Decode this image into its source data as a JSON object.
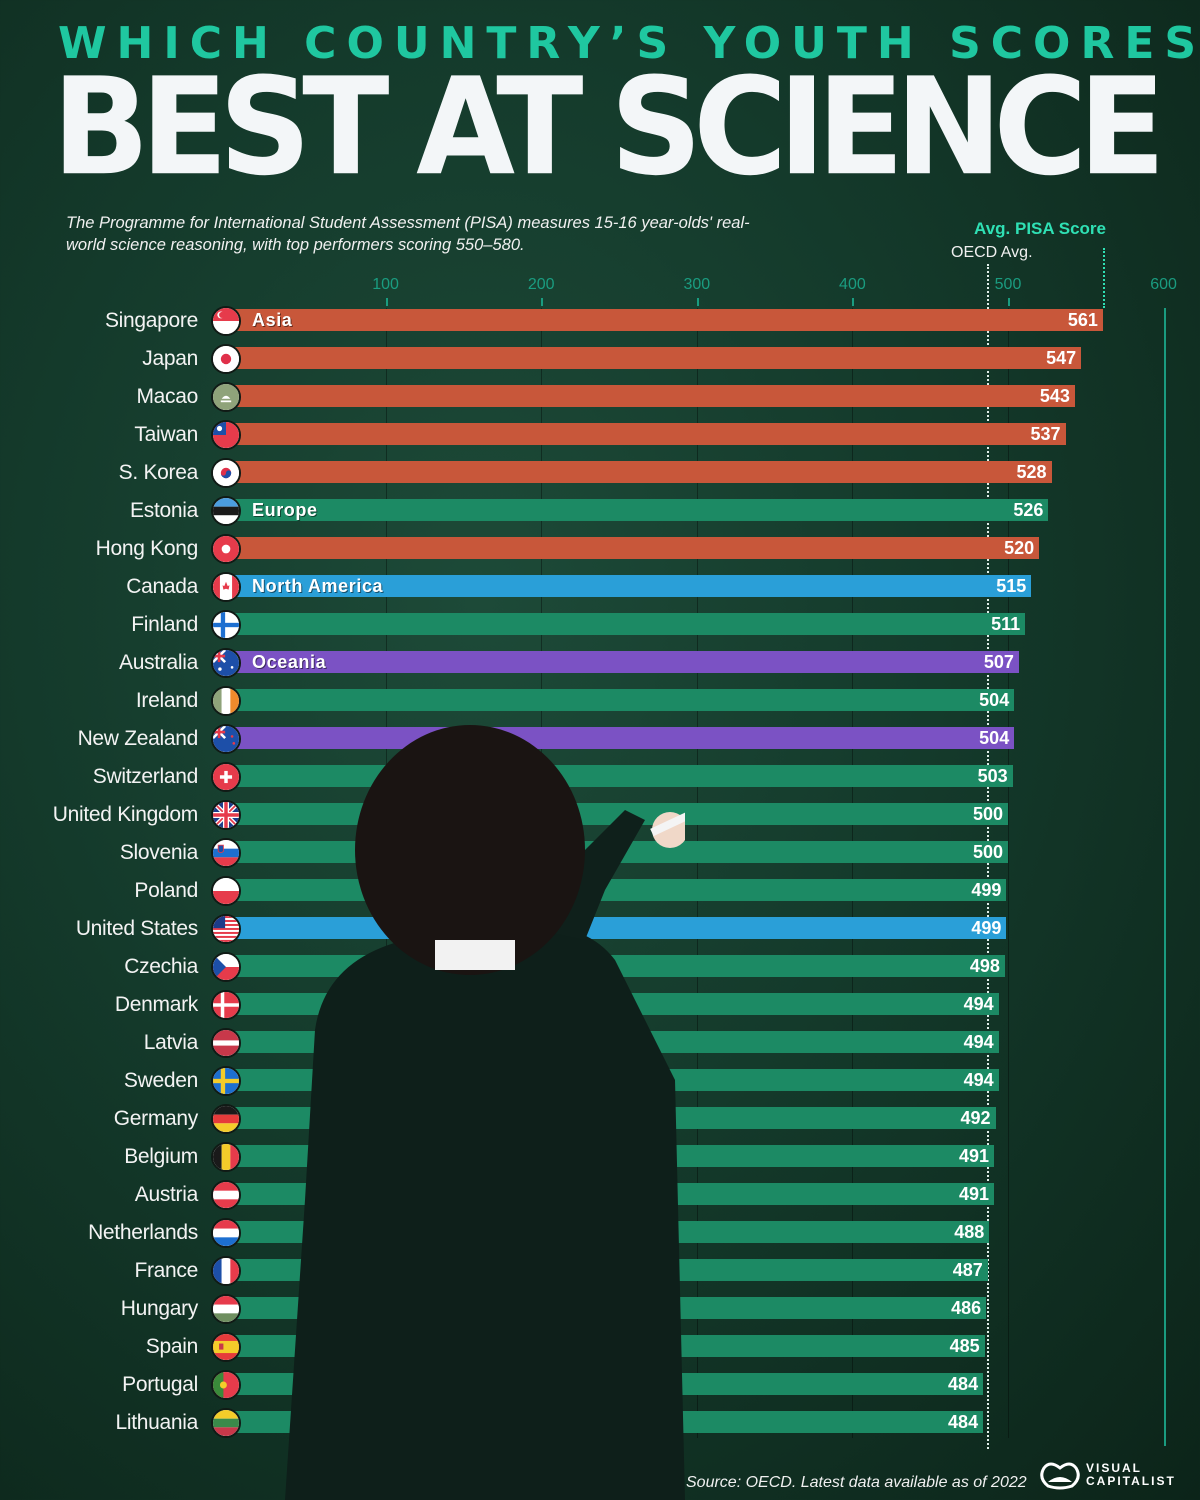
{
  "header": {
    "kicker": "WHICH COUNTRY’S YOUTH SCORES",
    "headline": "BEST AT SCIENCE",
    "description": "The Programme for International Student Assessment (PISA) measures 15-16 year-olds' real-world science reasoning, with top performers scoring 550–580."
  },
  "legend": {
    "avg_label": "Avg. PISA Score",
    "oecd_label": "OECD Avg."
  },
  "colors": {
    "asia": "#c8573a",
    "europe": "#1c8a64",
    "north_america": "#2a9fd8",
    "oceania": "#7b52c4",
    "accent": "#1fc7a0",
    "axis": "#1a9c80"
  },
  "footer": {
    "source": "Source: OECD. Latest data available  as of 2022",
    "logo_line1": "VISUAL",
    "logo_line2": "CAPITALIST"
  },
  "chart_data": {
    "type": "bar",
    "orientation": "horizontal",
    "title": "Which Country's Youth Scores Best at Science",
    "subtitle": "The Programme for International Student Assessment (PISA) measures 15-16 year-olds' real-world science reasoning, with top performers scoring 550–580.",
    "xlabel": "Avg. PISA Score",
    "ylabel": "",
    "xlim": [
      0,
      600
    ],
    "x_ticks": [
      100,
      200,
      300,
      400,
      500,
      600
    ],
    "reference_lines": [
      {
        "label": "OECD Avg.",
        "value": 485
      },
      {
        "label": "Avg. PISA Score",
        "value": 561
      }
    ],
    "legend": [
      "Asia",
      "Europe",
      "North America",
      "Oceania"
    ],
    "categories": [
      "Singapore",
      "Japan",
      "Macao",
      "Taiwan",
      "S. Korea",
      "Estonia",
      "Hong Kong",
      "Canada",
      "Finland",
      "Australia",
      "Ireland",
      "New Zealand",
      "Switzerland",
      "United Kingdom",
      "Slovenia",
      "Poland",
      "United States",
      "Czechia",
      "Denmark",
      "Latvia",
      "Sweden",
      "Germany",
      "Belgium",
      "Austria",
      "Netherlands",
      "France",
      "Hungary",
      "Spain",
      "Portugal",
      "Lithuania"
    ],
    "values": [
      561,
      547,
      543,
      537,
      528,
      526,
      520,
      515,
      511,
      507,
      504,
      504,
      503,
      500,
      500,
      499,
      499,
      498,
      494,
      494,
      494,
      492,
      491,
      491,
      488,
      487,
      486,
      485,
      484,
      484
    ],
    "regions": [
      "Asia",
      "Asia",
      "Asia",
      "Asia",
      "Asia",
      "Europe",
      "Asia",
      "North America",
      "Europe",
      "Oceania",
      "Europe",
      "Oceania",
      "Europe",
      "Europe",
      "Europe",
      "Europe",
      "North America",
      "Europe",
      "Europe",
      "Europe",
      "Europe",
      "Europe",
      "Europe",
      "Europe",
      "Europe",
      "Europe",
      "Europe",
      "Europe",
      "Europe",
      "Europe"
    ],
    "rows": [
      {
        "country": "Singapore",
        "score": "561",
        "region": "asia",
        "region_label": "Asia",
        "flag": "singapore-flag"
      },
      {
        "country": "Japan",
        "score": "547",
        "region": "asia",
        "region_label": "",
        "flag": "japan-flag"
      },
      {
        "country": "Macao",
        "score": "543",
        "region": "asia",
        "region_label": "",
        "flag": "macao-flag"
      },
      {
        "country": "Taiwan",
        "score": "537",
        "region": "asia",
        "region_label": "",
        "flag": "taiwan-flag"
      },
      {
        "country": "S. Korea",
        "score": "528",
        "region": "asia",
        "region_label": "",
        "flag": "south-korea-flag"
      },
      {
        "country": "Estonia",
        "score": "526",
        "region": "europe",
        "region_label": "Europe",
        "flag": "estonia-flag"
      },
      {
        "country": "Hong Kong",
        "score": "520",
        "region": "asia",
        "region_label": "",
        "flag": "hong-kong-flag"
      },
      {
        "country": "Canada",
        "score": "515",
        "region": "north_america",
        "region_label": "North America",
        "flag": "canada-flag"
      },
      {
        "country": "Finland",
        "score": "511",
        "region": "europe",
        "region_label": "",
        "flag": "finland-flag"
      },
      {
        "country": "Australia",
        "score": "507",
        "region": "oceania",
        "region_label": "Oceania",
        "flag": "australia-flag"
      },
      {
        "country": "Ireland",
        "score": "504",
        "region": "europe",
        "region_label": "",
        "flag": "ireland-flag"
      },
      {
        "country": "New Zealand",
        "score": "504",
        "region": "oceania",
        "region_label": "",
        "flag": "new-zealand-flag"
      },
      {
        "country": "Switzerland",
        "score": "503",
        "region": "europe",
        "region_label": "",
        "flag": "switzerland-flag"
      },
      {
        "country": "United Kingdom",
        "score": "500",
        "region": "europe",
        "region_label": "",
        "flag": "united-kingdom-flag"
      },
      {
        "country": "Slovenia",
        "score": "500",
        "region": "europe",
        "region_label": "",
        "flag": "slovenia-flag"
      },
      {
        "country": "Poland",
        "score": "499",
        "region": "europe",
        "region_label": "",
        "flag": "poland-flag"
      },
      {
        "country": "United States",
        "score": "499",
        "region": "north_america",
        "region_label": "",
        "flag": "united-states-flag"
      },
      {
        "country": "Czechia",
        "score": "498",
        "region": "europe",
        "region_label": "",
        "flag": "czechia-flag"
      },
      {
        "country": "Denmark",
        "score": "494",
        "region": "europe",
        "region_label": "",
        "flag": "denmark-flag"
      },
      {
        "country": "Latvia",
        "score": "494",
        "region": "europe",
        "region_label": "",
        "flag": "latvia-flag"
      },
      {
        "country": "Sweden",
        "score": "494",
        "region": "europe",
        "region_label": "",
        "flag": "sweden-flag"
      },
      {
        "country": "Germany",
        "score": "492",
        "region": "europe",
        "region_label": "",
        "flag": "germany-flag"
      },
      {
        "country": "Belgium",
        "score": "491",
        "region": "europe",
        "region_label": "",
        "flag": "belgium-flag"
      },
      {
        "country": "Austria",
        "score": "491",
        "region": "europe",
        "region_label": "",
        "flag": "austria-flag"
      },
      {
        "country": "Netherlands",
        "score": "488",
        "region": "europe",
        "region_label": "",
        "flag": "netherlands-flag"
      },
      {
        "country": "France",
        "score": "487",
        "region": "europe",
        "region_label": "",
        "flag": "france-flag"
      },
      {
        "country": "Hungary",
        "score": "486",
        "region": "europe",
        "region_label": "",
        "flag": "hungary-flag"
      },
      {
        "country": "Spain",
        "score": "485",
        "region": "europe",
        "region_label": "",
        "flag": "spain-flag"
      },
      {
        "country": "Portugal",
        "score": "484",
        "region": "europe",
        "region_label": "",
        "flag": "portugal-flag"
      },
      {
        "country": "Lithuania",
        "score": "484",
        "region": "europe",
        "region_label": "",
        "flag": "lithuania-flag"
      }
    ],
    "grid": true,
    "legend_position": "inline-bar-labels"
  }
}
